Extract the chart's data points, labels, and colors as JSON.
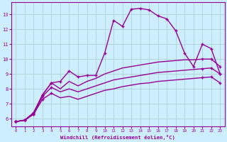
{
  "bg_color": "#cceeff",
  "grid_color": "#aacccc",
  "line_color": "#990099",
  "xlabel": "Windchill (Refroidissement éolien,°C)",
  "xlim": [
    -0.5,
    23.5
  ],
  "ylim": [
    5.5,
    13.8
  ],
  "yticks": [
    6,
    7,
    8,
    9,
    10,
    11,
    12,
    13
  ],
  "xticks": [
    0,
    1,
    2,
    3,
    4,
    5,
    6,
    7,
    8,
    9,
    10,
    11,
    12,
    13,
    14,
    15,
    16,
    17,
    18,
    19,
    20,
    21,
    22,
    23
  ],
  "series": [
    {
      "x": [
        0,
        1,
        2,
        3,
        4,
        5,
        6,
        7,
        8,
        9,
        10,
        11,
        12,
        13,
        14,
        15,
        16,
        17,
        18,
        19,
        20,
        21,
        22,
        23
      ],
      "y": [
        5.8,
        5.9,
        6.4,
        7.6,
        8.4,
        8.5,
        9.2,
        8.8,
        8.9,
        8.9,
        10.4,
        12.6,
        12.2,
        13.35,
        13.4,
        13.3,
        12.9,
        12.7,
        11.9,
        10.4,
        9.5,
        11.0,
        10.7,
        9.0
      ],
      "marker_x": [
        0,
        1,
        2,
        3,
        4,
        5,
        6,
        7,
        8,
        9,
        10,
        11,
        12,
        13,
        14,
        15,
        16,
        17,
        18,
        19,
        20,
        21,
        22,
        23
      ],
      "marker_y": [
        5.8,
        5.9,
        6.4,
        7.6,
        8.4,
        8.5,
        9.2,
        8.8,
        8.9,
        8.9,
        10.4,
        12.6,
        12.2,
        13.35,
        13.4,
        13.3,
        12.9,
        12.7,
        11.9,
        10.4,
        9.5,
        11.0,
        10.7,
        9.0
      ],
      "linewidth": 1.0
    },
    {
      "x": [
        0,
        1,
        2,
        3,
        4,
        5,
        6,
        7,
        8,
        9,
        10,
        11,
        12,
        13,
        14,
        15,
        16,
        17,
        18,
        19,
        20,
        21,
        22,
        23
      ],
      "y": [
        5.8,
        5.9,
        6.4,
        7.6,
        8.4,
        8.0,
        8.5,
        8.2,
        8.5,
        8.7,
        9.0,
        9.2,
        9.4,
        9.5,
        9.6,
        9.7,
        9.8,
        9.85,
        9.9,
        9.95,
        9.95,
        10.0,
        10.0,
        9.5
      ],
      "marker_x": [
        0,
        1,
        2,
        3,
        4,
        21,
        22,
        23
      ],
      "marker_y": [
        5.8,
        5.9,
        6.4,
        7.6,
        8.4,
        10.0,
        10.0,
        9.5
      ],
      "linewidth": 1.0
    },
    {
      "x": [
        0,
        1,
        2,
        3,
        4,
        5,
        6,
        7,
        8,
        9,
        10,
        11,
        12,
        13,
        14,
        15,
        16,
        17,
        18,
        19,
        20,
        21,
        22,
        23
      ],
      "y": [
        5.8,
        5.9,
        6.3,
        7.5,
        8.1,
        7.8,
        8.0,
        7.8,
        8.0,
        8.2,
        8.4,
        8.6,
        8.7,
        8.8,
        8.9,
        9.0,
        9.1,
        9.15,
        9.2,
        9.25,
        9.3,
        9.35,
        9.4,
        9.0
      ],
      "marker_x": [
        0,
        1,
        2,
        3,
        4,
        21,
        22,
        23
      ],
      "marker_y": [
        5.8,
        5.9,
        6.3,
        7.5,
        8.1,
        9.35,
        9.4,
        9.0
      ],
      "linewidth": 1.0
    },
    {
      "x": [
        0,
        1,
        2,
        3,
        4,
        5,
        6,
        7,
        8,
        9,
        10,
        11,
        12,
        13,
        14,
        15,
        16,
        17,
        18,
        19,
        20,
        21,
        22,
        23
      ],
      "y": [
        5.8,
        5.9,
        6.3,
        7.3,
        7.7,
        7.4,
        7.5,
        7.3,
        7.5,
        7.7,
        7.9,
        8.0,
        8.15,
        8.25,
        8.35,
        8.4,
        8.5,
        8.55,
        8.6,
        8.65,
        8.7,
        8.75,
        8.8,
        8.4
      ],
      "marker_x": [
        0,
        1,
        2,
        3,
        4,
        21,
        22,
        23
      ],
      "marker_y": [
        5.8,
        5.9,
        6.3,
        7.3,
        7.7,
        8.75,
        8.8,
        8.4
      ],
      "linewidth": 1.0
    }
  ]
}
